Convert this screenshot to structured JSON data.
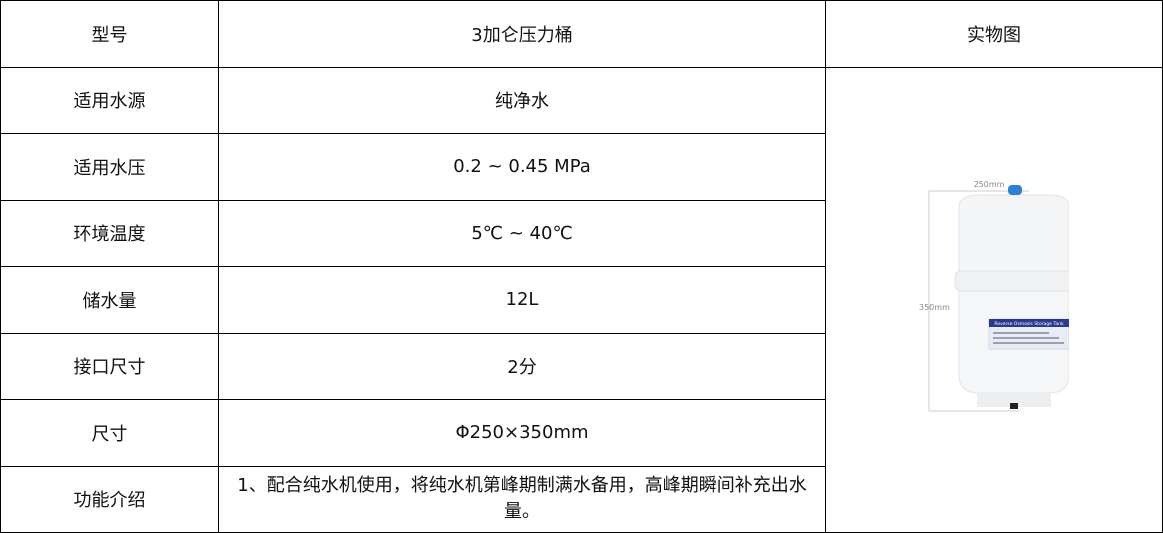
{
  "table": {
    "header": {
      "label": "型号",
      "value": "3加仑压力桶",
      "image_label": "实物图"
    },
    "rows": [
      {
        "label": "适用水源",
        "value": "纯净水"
      },
      {
        "label": "适用水压",
        "value": "0.2 ~ 0.45 MPa"
      },
      {
        "label": "环境温度",
        "value": "5℃ ~ 40℃"
      },
      {
        "label": "储水量",
        "value": "12L"
      },
      {
        "label": "接口尺寸",
        "value": "2分"
      },
      {
        "label": "尺寸",
        "value": "Φ250×350mm"
      },
      {
        "label": "功能介绍",
        "value": "1、配合纯水机使用，将纯水机第峰期制满水备用，高峰期瞬间补充出水量。"
      }
    ]
  },
  "product_image": {
    "width_label": "250mm",
    "height_label": "350mm",
    "tank_label": "Reverse Osmosis Storage Tank",
    "cap_color": "#2f7fd6"
  }
}
